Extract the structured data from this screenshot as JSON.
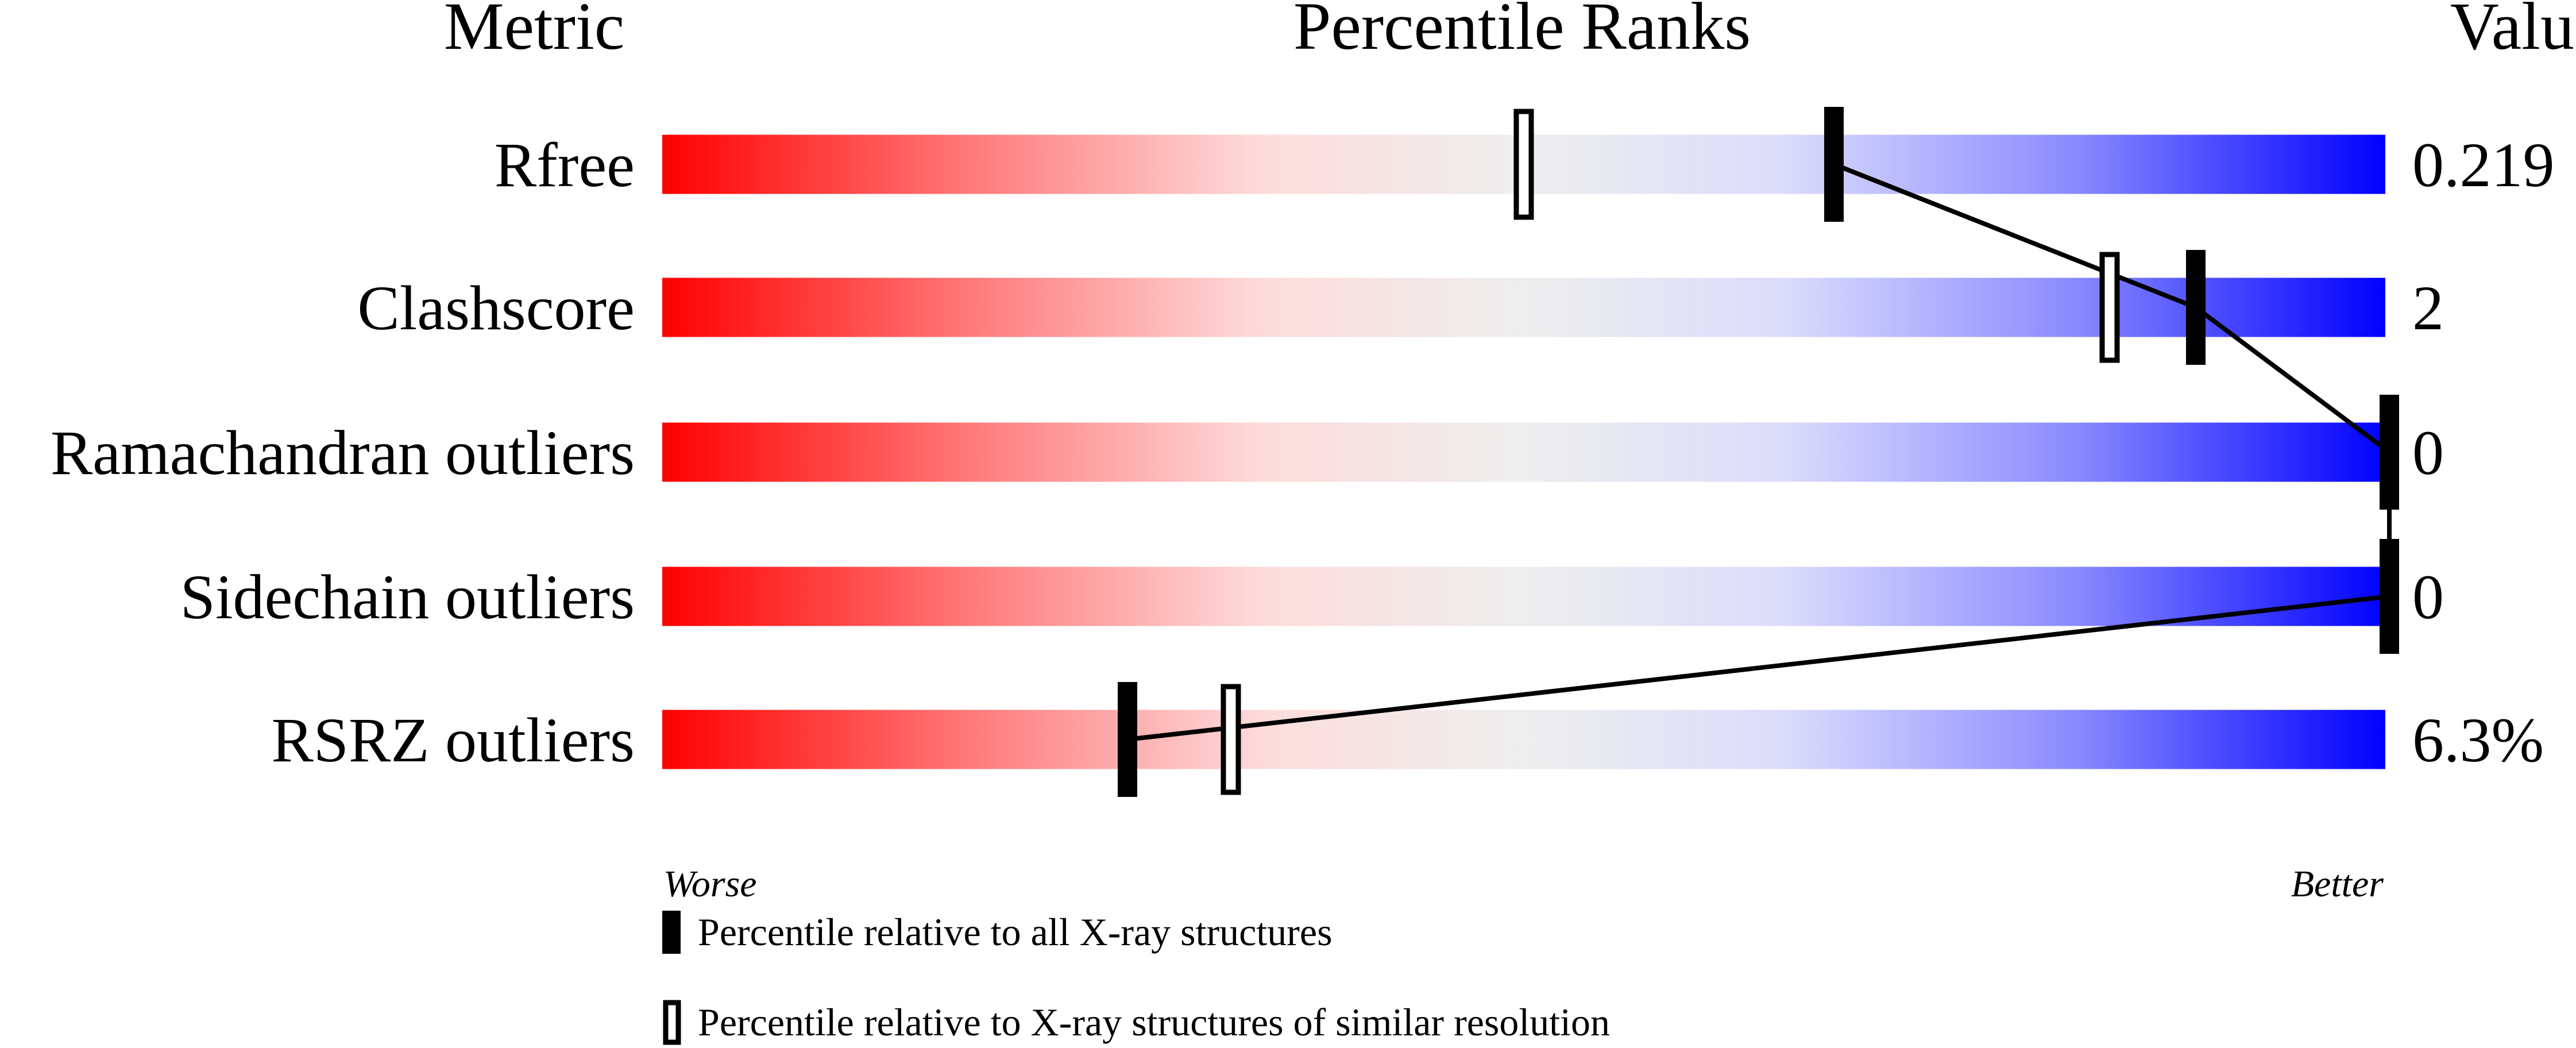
{
  "chart_data": {
    "type": "percentile-slider",
    "headers": {
      "metric": "Metric",
      "ranks": "Percentile Ranks",
      "value": "Value"
    },
    "axis": {
      "left_label": "Worse",
      "right_label": "Better",
      "range": [
        0,
        100
      ]
    },
    "rows": [
      {
        "metric": "Rfree",
        "value": "0.219",
        "percentile_all": 68,
        "percentile_similar": 50
      },
      {
        "metric": "Clashscore",
        "value": "2",
        "percentile_all": 89,
        "percentile_similar": 84
      },
      {
        "metric": "Ramachandran outliers",
        "value": "0",
        "percentile_all": 100,
        "percentile_similar": 100
      },
      {
        "metric": "Sidechain outliers",
        "value": "0",
        "percentile_all": 100,
        "percentile_similar": 100
      },
      {
        "metric": "RSRZ outliers",
        "value": "6.3%",
        "percentile_all": 27,
        "percentile_similar": 33
      }
    ],
    "legend": [
      {
        "marker": "filled",
        "label": "Percentile relative to all X-ray structures"
      },
      {
        "marker": "open",
        "label": "Percentile relative to X-ray structures of similar resolution"
      }
    ],
    "gradient_colors": [
      "#ff0000",
      "#ff7b7b",
      "#fddcdc",
      "#eeeeee",
      "#dcdcfc",
      "#8a8aff",
      "#0000ff"
    ]
  }
}
